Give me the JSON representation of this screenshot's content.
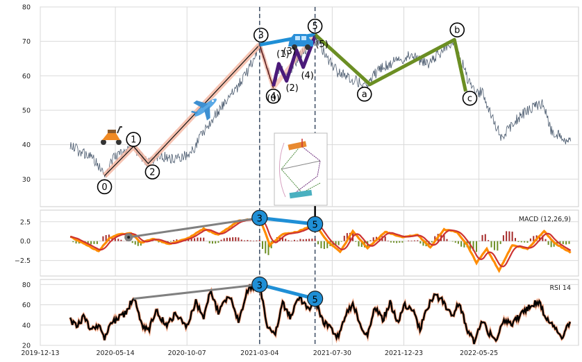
{
  "chart_data": {
    "type": "line",
    "x_ticks": [
      "2019-12-13",
      "2020-05-14",
      "2020-10-07",
      "2021-03-04",
      "2021-07-30",
      "2021-12-23",
      "2022-05-25"
    ],
    "price_panel": {
      "ylim": [
        22,
        80
      ],
      "y_ticks": [
        "30",
        "40",
        "50",
        "60",
        "70",
        "80"
      ],
      "price_path": [
        [
          "2020-02-12",
          40
        ],
        [
          "2020-03-01",
          38
        ],
        [
          "2020-03-20",
          37
        ],
        [
          "2020-04-05",
          35
        ],
        [
          "2020-04-22",
          31
        ],
        [
          "2020-05-10",
          36
        ],
        [
          "2020-06-01",
          38
        ],
        [
          "2020-06-20",
          39.5
        ],
        [
          "2020-07-10",
          36
        ],
        [
          "2020-07-20",
          34.5
        ],
        [
          "2020-08-10",
          37
        ],
        [
          "2020-09-10",
          36
        ],
        [
          "2020-10-15",
          37.5
        ],
        [
          "2020-11-10",
          44
        ],
        [
          "2020-12-10",
          50
        ],
        [
          "2021-01-15",
          56
        ],
        [
          "2021-02-10",
          62
        ],
        [
          "2021-03-04",
          69
        ],
        [
          "2021-03-20",
          62
        ],
        [
          "2021-04-01",
          57
        ],
        [
          "2021-04-15",
          63
        ],
        [
          "2021-05-01",
          60
        ],
        [
          "2021-05-20",
          65
        ],
        [
          "2021-06-10",
          68
        ],
        [
          "2021-06-25",
          72
        ],
        [
          "2021-07-15",
          66
        ],
        [
          "2021-08-10",
          61
        ],
        [
          "2021-09-10",
          59
        ],
        [
          "2021-10-10",
          57
        ],
        [
          "2021-11-01",
          62
        ],
        [
          "2021-12-01",
          64
        ],
        [
          "2022-01-10",
          66
        ],
        [
          "2022-02-10",
          63
        ],
        [
          "2022-03-15",
          68
        ],
        [
          "2022-04-05",
          70
        ],
        [
          "2022-04-25",
          62
        ],
        [
          "2022-05-10",
          56
        ],
        [
          "2022-06-01",
          55
        ],
        [
          "2022-06-20",
          48
        ],
        [
          "2022-07-10",
          42
        ],
        [
          "2022-08-01",
          46
        ],
        [
          "2022-09-01",
          50
        ],
        [
          "2022-10-01",
          52
        ],
        [
          "2022-10-20",
          44
        ],
        [
          "2022-11-10",
          42
        ],
        [
          "2022-11-28",
          41
        ]
      ],
      "wave_points": [
        {
          "label": "0",
          "date": "2020-04-22",
          "y": 31
        },
        {
          "label": "1",
          "date": "2020-06-20",
          "y": 39.5
        },
        {
          "label": "2",
          "date": "2020-07-20",
          "y": 34.5
        },
        {
          "label": "3",
          "date": "2021-03-04",
          "y": 69
        },
        {
          "label": "4",
          "date": "2021-04-01",
          "y": 56.5
        },
        {
          "label": "5",
          "date": "2021-06-25",
          "y": 72
        },
        {
          "label": "a",
          "date": "2021-10-15",
          "y": 57.5
        },
        {
          "label": "b",
          "date": "2022-04-05",
          "y": 70.5
        },
        {
          "label": "c",
          "date": "2022-04-28",
          "y": 55.5
        }
      ],
      "subwave_labels": [
        {
          "label": "(0)",
          "date": "2021-04-01",
          "y": 57
        },
        {
          "label": "(1)",
          "date": "2021-04-12",
          "y": 63.5
        },
        {
          "label": "(2)",
          "date": "2021-04-28",
          "y": 58.5
        },
        {
          "label": "(3)",
          "date": "2021-05-18",
          "y": 67.5
        },
        {
          "label": "(4)",
          "date": "2021-06-01",
          "y": 62.5
        },
        {
          "label": "(5)",
          "date": "2021-06-25",
          "y": 71.5
        }
      ],
      "vlines": [
        "2021-03-04",
        "2021-06-25"
      ],
      "colors": {
        "price": "#4a5a6e",
        "impulse_band": "#f5b8a5",
        "impulse_line": "#111111",
        "subwave": "#4b1a7a",
        "correction": "#6b8e23",
        "link": "#1f8fd6"
      },
      "icons": [
        "scooter-icon",
        "airplane-icon",
        "car-icon",
        "inset-diagram"
      ]
    },
    "macd_panel": {
      "title": "MACD (12,26,9)",
      "ylim": [
        -4.5,
        4
      ],
      "y_ticks": [
        "2.5",
        "0.0",
        "−2.5"
      ],
      "macd_path": [
        [
          "2020-02-12",
          0.6
        ],
        [
          "2020-03-10",
          -0.3
        ],
        [
          "2020-04-10",
          -1.3
        ],
        [
          "2020-05-01",
          0.3
        ],
        [
          "2020-05-20",
          0.9
        ],
        [
          "2020-06-15",
          1.0
        ],
        [
          "2020-07-05",
          -0.2
        ],
        [
          "2020-08-01",
          0.3
        ],
        [
          "2020-09-01",
          -0.4
        ],
        [
          "2020-10-10",
          0.4
        ],
        [
          "2020-11-10",
          1.6
        ],
        [
          "2020-12-10",
          0.8
        ],
        [
          "2021-01-20",
          2.6
        ],
        [
          "2021-03-04",
          3.0
        ],
        [
          "2021-03-25",
          -0.5
        ],
        [
          "2021-04-20",
          0.9
        ],
        [
          "2021-05-20",
          1.2
        ],
        [
          "2021-06-25",
          2.2
        ],
        [
          "2021-07-20",
          0.0
        ],
        [
          "2021-08-15",
          -1.4
        ],
        [
          "2021-09-10",
          1.3
        ],
        [
          "2021-10-10",
          -0.9
        ],
        [
          "2021-11-15",
          1.2
        ],
        [
          "2021-12-20",
          0.5
        ],
        [
          "2022-01-20",
          0.8
        ],
        [
          "2022-02-15",
          -0.8
        ],
        [
          "2022-03-15",
          1.5
        ],
        [
          "2022-04-10",
          1.2
        ],
        [
          "2022-05-01",
          -0.5
        ],
        [
          "2022-05-20",
          -2.8
        ],
        [
          "2022-06-10",
          -1.0
        ],
        [
          "2022-07-05",
          -3.8
        ],
        [
          "2022-08-01",
          -0.5
        ],
        [
          "2022-09-01",
          -1.0
        ],
        [
          "2022-10-05",
          1.3
        ],
        [
          "2022-10-25",
          -0.2
        ],
        [
          "2022-11-28",
          -1.5
        ]
      ],
      "divergence": {
        "from": [
          "2020-06-10",
          0.5
        ],
        "to": [
          "2021-03-04",
          3.0
        ]
      },
      "markers": [
        {
          "label": "3",
          "date": "2021-03-04",
          "y": 3.0
        },
        {
          "label": "5",
          "date": "2021-06-25",
          "y": 2.2
        }
      ],
      "colors": {
        "macd": "#ff8c00",
        "signal": "#cc3333",
        "hist_pos": "#a52a2a",
        "hist_neg": "#6b8e23",
        "divergence": "#808080",
        "marker": "#1f8fd6"
      }
    },
    "rsi_panel": {
      "title": "RSI 14",
      "ylim": [
        20,
        85
      ],
      "y_ticks": [
        "20",
        "40",
        "60",
        "80"
      ],
      "rsi_path": [
        [
          "2020-02-12",
          45
        ],
        [
          "2020-02-25",
          38
        ],
        [
          "2020-03-10",
          48
        ],
        [
          "2020-03-25",
          36
        ],
        [
          "2020-04-10",
          40
        ],
        [
          "2020-04-22",
          26
        ],
        [
          "2020-05-05",
          42
        ],
        [
          "2020-05-20",
          47
        ],
        [
          "2020-06-05",
          52
        ],
        [
          "2020-06-20",
          68
        ],
        [
          "2020-07-05",
          42
        ],
        [
          "2020-07-20",
          34
        ],
        [
          "2020-08-05",
          55
        ],
        [
          "2020-08-25",
          40
        ],
        [
          "2020-09-15",
          52
        ],
        [
          "2020-10-05",
          38
        ],
        [
          "2020-10-25",
          63
        ],
        [
          "2020-11-10",
          48
        ],
        [
          "2020-11-25",
          75
        ],
        [
          "2020-12-10",
          52
        ],
        [
          "2021-01-01",
          70
        ],
        [
          "2021-01-20",
          45
        ],
        [
          "2021-02-10",
          78
        ],
        [
          "2021-03-04",
          80
        ],
        [
          "2021-03-20",
          38
        ],
        [
          "2021-04-05",
          30
        ],
        [
          "2021-04-20",
          62
        ],
        [
          "2021-05-05",
          48
        ],
        [
          "2021-05-25",
          68
        ],
        [
          "2021-06-10",
          55
        ],
        [
          "2021-06-25",
          66
        ],
        [
          "2021-07-10",
          44
        ],
        [
          "2021-07-25",
          38
        ],
        [
          "2021-08-10",
          28
        ],
        [
          "2021-08-25",
          48
        ],
        [
          "2021-09-10",
          62
        ],
        [
          "2021-09-25",
          40
        ],
        [
          "2021-10-10",
          30
        ],
        [
          "2021-10-25",
          58
        ],
        [
          "2021-11-10",
          45
        ],
        [
          "2021-11-25",
          62
        ],
        [
          "2021-12-10",
          42
        ],
        [
          "2021-12-25",
          60
        ],
        [
          "2022-01-10",
          55
        ],
        [
          "2022-01-25",
          36
        ],
        [
          "2022-02-10",
          58
        ],
        [
          "2022-02-25",
          70
        ],
        [
          "2022-03-15",
          62
        ],
        [
          "2022-03-30",
          48
        ],
        [
          "2022-04-15",
          62
        ],
        [
          "2022-04-30",
          36
        ],
        [
          "2022-05-15",
          24
        ],
        [
          "2022-05-30",
          45
        ],
        [
          "2022-06-15",
          32
        ],
        [
          "2022-07-01",
          26
        ],
        [
          "2022-07-15",
          45
        ],
        [
          "2022-08-01",
          40
        ],
        [
          "2022-08-20",
          52
        ],
        [
          "2022-09-10",
          60
        ],
        [
          "2022-09-25",
          64
        ],
        [
          "2022-10-10",
          45
        ],
        [
          "2022-10-25",
          38
        ],
        [
          "2022-11-10",
          28
        ],
        [
          "2022-11-20",
          40
        ],
        [
          "2022-11-28",
          42
        ]
      ],
      "divergence": {
        "from": [
          "2020-06-20",
          66
        ],
        "to": [
          "2021-03-04",
          80
        ]
      },
      "markers": [
        {
          "label": "3",
          "date": "2021-03-04",
          "y": 80
        },
        {
          "label": "5",
          "date": "2021-06-25",
          "y": 66
        }
      ],
      "colors": {
        "rsi": "#000000",
        "rsi_halo": "#f4a582",
        "divergence": "#808080",
        "marker": "#1f8fd6"
      }
    }
  }
}
